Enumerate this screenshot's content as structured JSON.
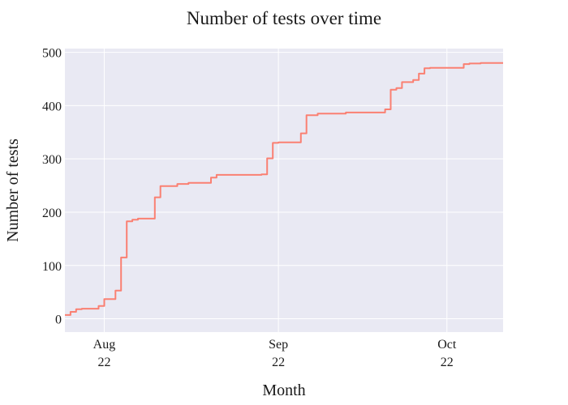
{
  "chart_data": {
    "type": "line",
    "title": "Number of tests over time",
    "xlabel": "Month",
    "ylabel": "Number of tests",
    "ylim": [
      -25,
      507
    ],
    "xlim": [
      "2022-07-25",
      "2022-10-11"
    ],
    "x_ticks": [
      {
        "date": "2022-08-01",
        "label": "Aug",
        "sublabel": "22"
      },
      {
        "date": "2022-09-01",
        "label": "Sep",
        "sublabel": "22"
      },
      {
        "date": "2022-10-01",
        "label": "Oct",
        "sublabel": "22"
      }
    ],
    "y_ticks": [
      0,
      100,
      200,
      300,
      400,
      500
    ],
    "grid": true,
    "colors": {
      "plot_background": "#e9e9f3",
      "grid": "#ffffff",
      "line": "#fa8072"
    },
    "series": [
      {
        "x": [
          "2022-07-25",
          "2022-07-26",
          "2022-07-26",
          "2022-07-26",
          "2022-07-27",
          "2022-07-27",
          "2022-07-28",
          "2022-07-31",
          "2022-07-31",
          "2022-08-01",
          "2022-08-01",
          "2022-08-03",
          "2022-08-03",
          "2022-08-04",
          "2022-08-04",
          "2022-08-05",
          "2022-08-05",
          "2022-08-06",
          "2022-08-07",
          "2022-08-10",
          "2022-08-10",
          "2022-08-11",
          "2022-08-11",
          "2022-08-14",
          "2022-08-16",
          "2022-08-20",
          "2022-08-20",
          "2022-08-21",
          "2022-08-21",
          "2022-08-29",
          "2022-08-30",
          "2022-08-30",
          "2022-08-31",
          "2022-08-31",
          "2022-09-01",
          "2022-09-05",
          "2022-09-05",
          "2022-09-06",
          "2022-09-06",
          "2022-09-08",
          "2022-09-13",
          "2022-09-20",
          "2022-09-20",
          "2022-09-21",
          "2022-09-21",
          "2022-09-22",
          "2022-09-23",
          "2022-09-23",
          "2022-09-25",
          "2022-09-26",
          "2022-09-26",
          "2022-09-27",
          "2022-09-28",
          "2022-10-04",
          "2022-10-04",
          "2022-10-05",
          "2022-10-07"
        ],
        "y": [
          7,
          8,
          10,
          13,
          17,
          18,
          19,
          21,
          24,
          35,
          37,
          38,
          53,
          55,
          115,
          117,
          183,
          186,
          188,
          193,
          228,
          230,
          249,
          253,
          255,
          258,
          265,
          267,
          270,
          271,
          300,
          301,
          306,
          330,
          331,
          331,
          348,
          352,
          382,
          385,
          387,
          389,
          393,
          397,
          430,
          433,
          436,
          444,
          448,
          458,
          460,
          470,
          471,
          472,
          478,
          479,
          480
        ]
      }
    ]
  }
}
